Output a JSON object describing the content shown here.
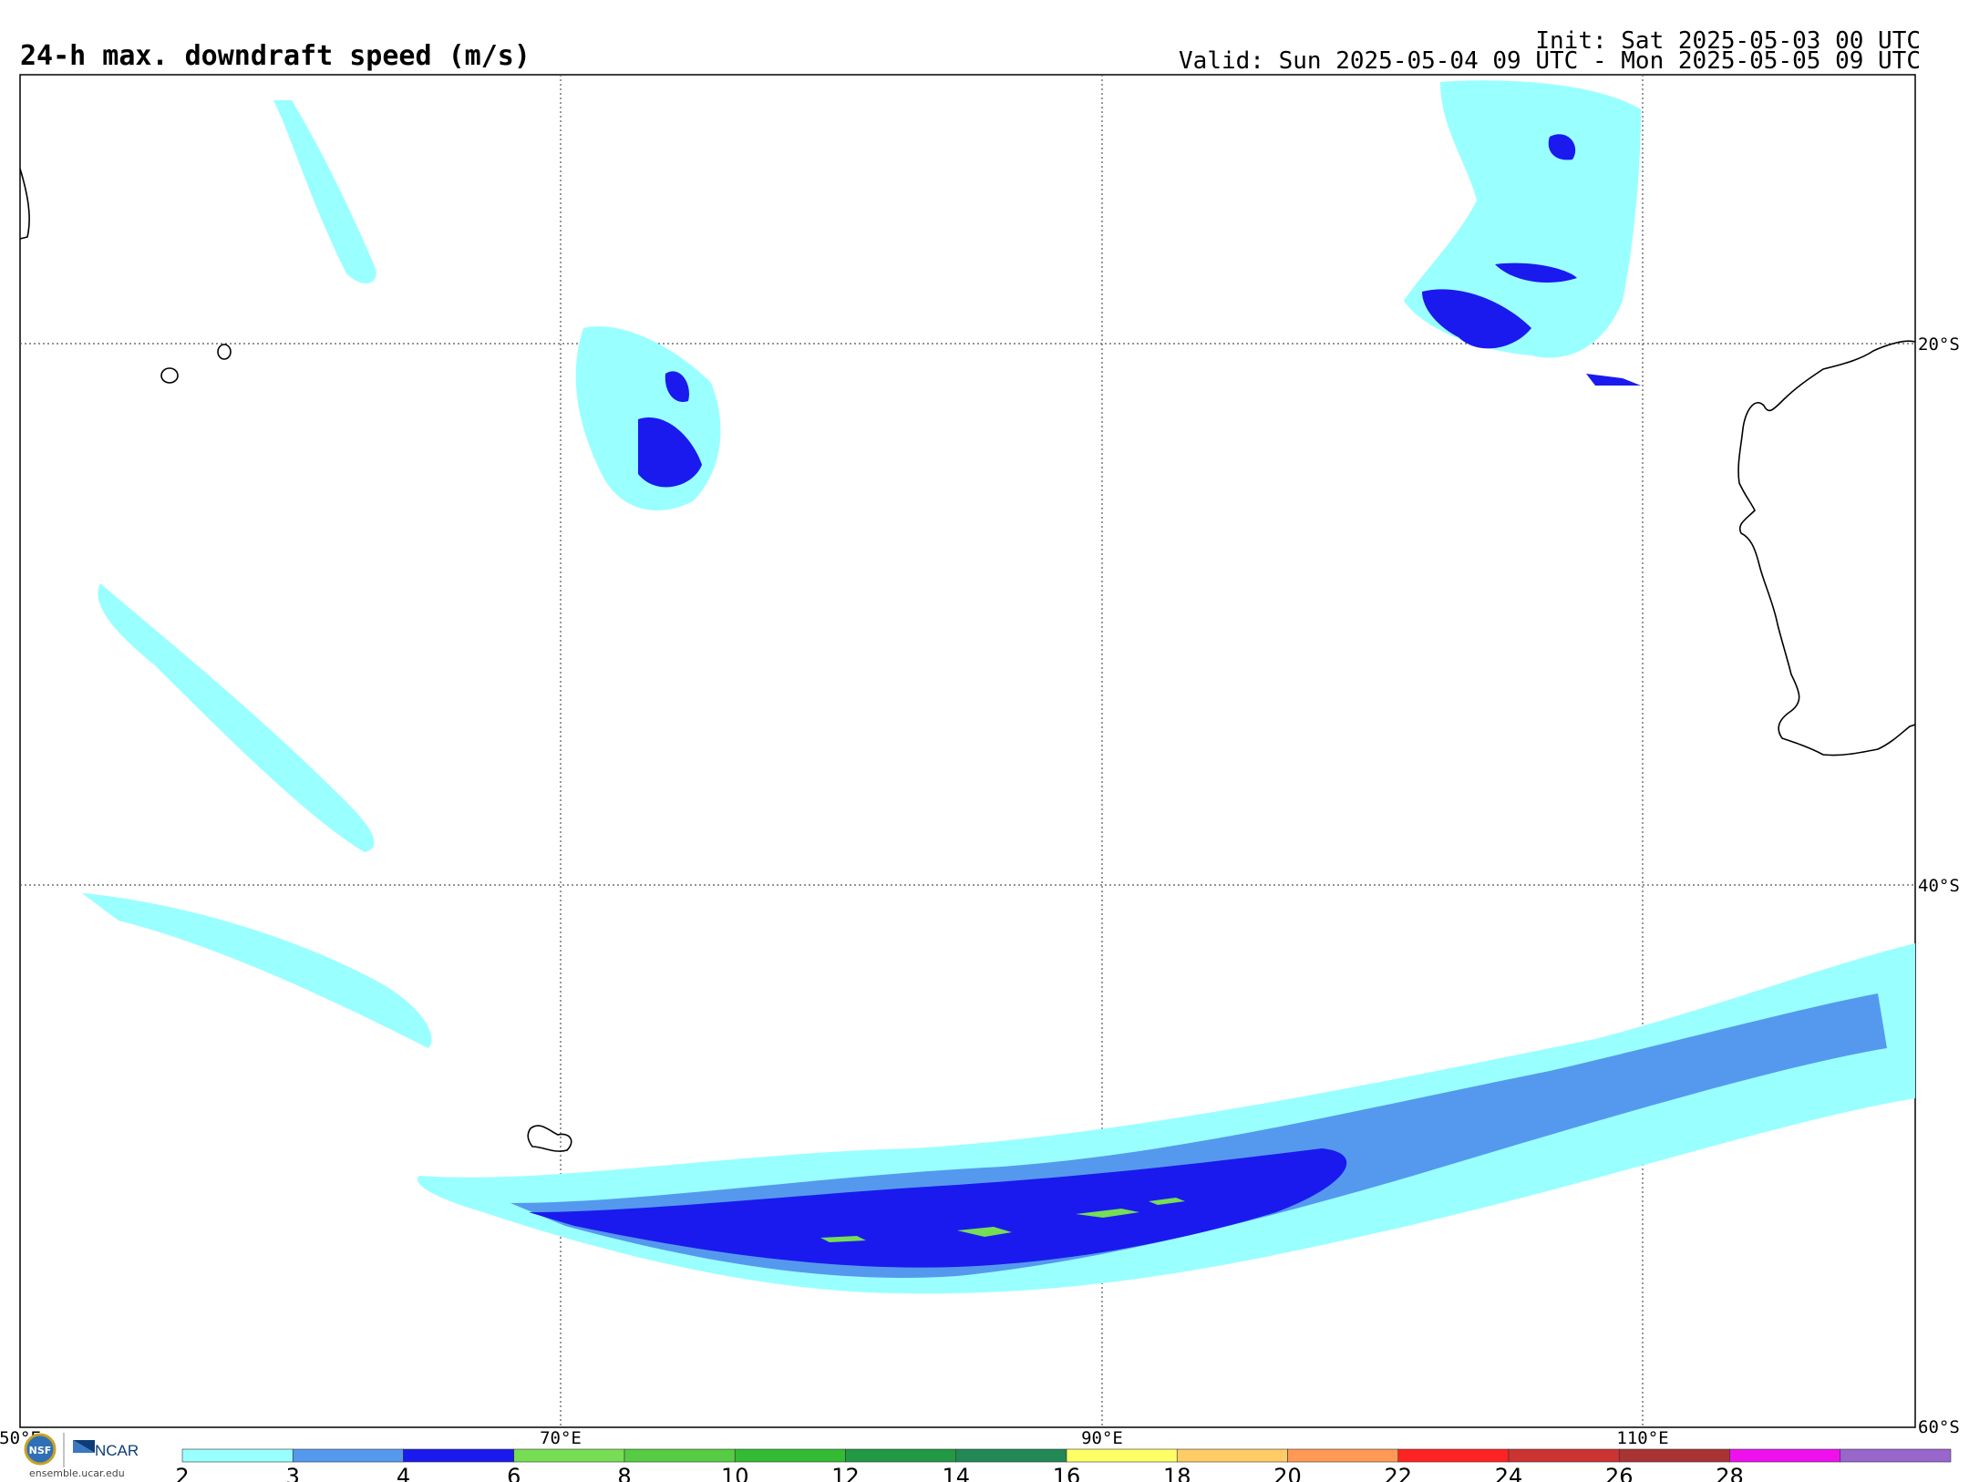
{
  "title": "24-h max. downdraft speed (m/s)",
  "init": "Init: Sat 2025-05-03 00 UTC",
  "valid": "Valid: Sun 2025-05-04 09 UTC - Mon 2025-05-05 09 UTC",
  "map": {
    "lon_labels": [
      "50°E",
      "70°E",
      "90°E",
      "110°E"
    ],
    "lat_labels": [
      "20°S",
      "40°S",
      "60°S"
    ]
  },
  "colorbar": {
    "ticks": [
      "2",
      "3",
      "4",
      "6",
      "8",
      "10",
      "12",
      "14",
      "16",
      "18",
      "20",
      "22",
      "24",
      "26",
      "28"
    ],
    "colors": [
      "#99ffff",
      "#5599ee",
      "#1a1aee",
      "#77dd55",
      "#55cc44",
      "#33bb33",
      "#229944",
      "#228855",
      "#ffff66",
      "#ffcc66",
      "#ff9955",
      "#ff2222",
      "#cc3333",
      "#aa3333",
      "#ee11ee",
      "#9966cc"
    ]
  },
  "logos": {
    "ncar": "NCAR",
    "url": "ensemble.ucar.edu"
  },
  "icons": {
    "nsf": "nsf-logo-icon",
    "ncar": "ncar-logo-icon"
  }
}
